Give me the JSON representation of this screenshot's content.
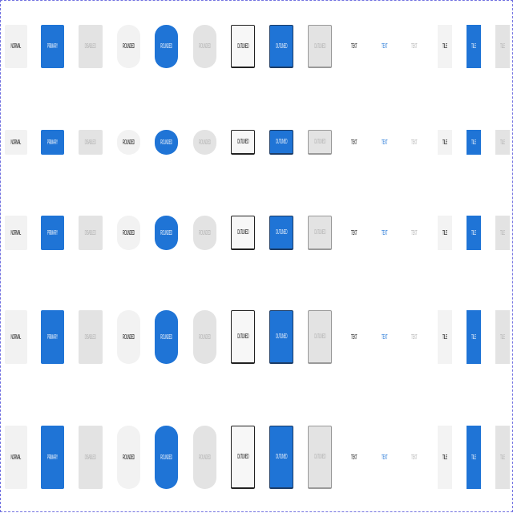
{
  "labels": {
    "normal": "Normal",
    "primary": "Primary",
    "disabled": "Disabled",
    "rounded": "Rounded",
    "rounded_primary": "Rounded",
    "rounded_disabled": "Rounded",
    "outlined": "Outlined",
    "outlined_primary": "Outlined",
    "outlined_disabled": "Outlined",
    "text": "Text",
    "text_primary": "Text",
    "text_disabled": "Text",
    "tile": "Tile",
    "tile_primary": "Tile",
    "tile_disabled": "Tile"
  },
  "colors": {
    "primary": "#1f74d6",
    "normal_bg": "#f2f2f2",
    "disabled_bg": "#e3e3e3",
    "disabled_text": "#b3b3b3",
    "frame_border": "#6f6fe0"
  }
}
